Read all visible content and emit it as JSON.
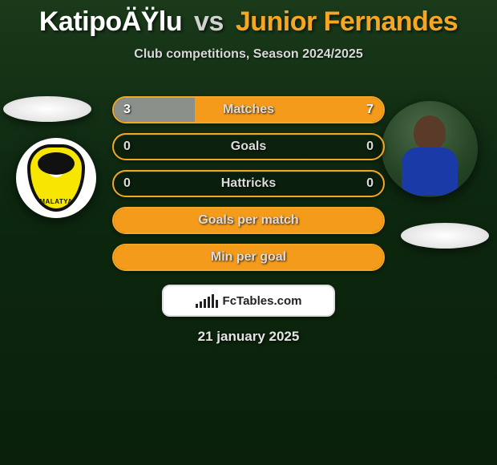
{
  "title": {
    "player1": "KatipoÄŸlu",
    "vs": "vs",
    "player2": "Junior Fernandes",
    "player1_color": "#ffffff",
    "player2_color": "#f5a623"
  },
  "subtitle": "Club competitions, Season 2024/2025",
  "date": "21 january 2025",
  "watermark": "FcTables.com",
  "colors": {
    "bg_top": "#1a3a1a",
    "bg_mid": "#0d2810",
    "bg_bot": "#0a2008",
    "bar_border_a": "#f5a623",
    "bar_border_b": "#f5a623",
    "bar_fill_grey": "#8a8f8a",
    "bar_fill_orange": "#f49b1b",
    "text_light": "#dcdcdc"
  },
  "players": {
    "left": {
      "club_name": "Malatya",
      "crest_primary": "#f7e600",
      "crest_secondary": "#111111"
    },
    "right": {
      "shirt_color": "#1a3aa8",
      "skin_color": "#5a3a28"
    }
  },
  "stats": [
    {
      "label": "Matches",
      "left_value": "3",
      "right_value": "7",
      "left_pct": 30,
      "right_pct": 70,
      "left_fill": "#8a8f8a",
      "right_fill": "#f49b1b",
      "border_color": "#f5a623",
      "show_values": true
    },
    {
      "label": "Goals",
      "left_value": "0",
      "right_value": "0",
      "left_pct": 0,
      "right_pct": 0,
      "left_fill": "transparent",
      "right_fill": "transparent",
      "border_color": "#f5a623",
      "show_values": true
    },
    {
      "label": "Hattricks",
      "left_value": "0",
      "right_value": "0",
      "left_pct": 0,
      "right_pct": 0,
      "left_fill": "transparent",
      "right_fill": "transparent",
      "border_color": "#f5a623",
      "show_values": true
    },
    {
      "label": "Goals per match",
      "left_value": "",
      "right_value": "",
      "left_pct": 100,
      "right_pct": 0,
      "left_fill": "#f49b1b",
      "right_fill": "transparent",
      "border_color": "#f5a623",
      "show_values": false
    },
    {
      "label": "Min per goal",
      "left_value": "",
      "right_value": "",
      "left_pct": 100,
      "right_pct": 0,
      "left_fill": "#f49b1b",
      "right_fill": "transparent",
      "border_color": "#f5a623",
      "show_values": false
    }
  ],
  "watermark_bars_heights": [
    5,
    8,
    11,
    14,
    17,
    10
  ]
}
